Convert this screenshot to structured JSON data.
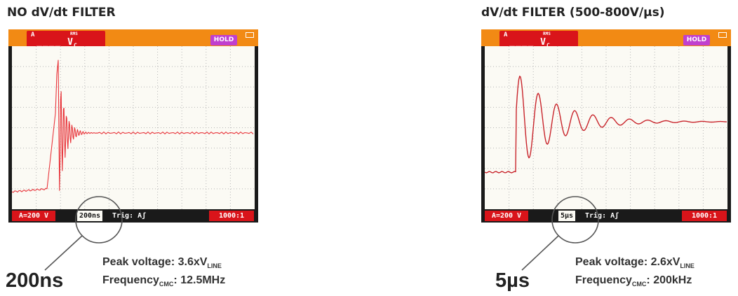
{
  "panels": [
    {
      "title": "NO dV/dt FILTER",
      "readout": {
        "channel": "A",
        "rms_label": "RMS",
        "value": "____ V",
        "value_sub": "C"
      },
      "hold_label": "HOLD",
      "scale_label": "A=200 V",
      "timebase_label": "200ns",
      "trigger_label": "Trig: Aʃ",
      "probe_label": "1000:1",
      "callout_value": "200ns",
      "peak_prefix": "Peak voltage: 3.6xV",
      "peak_sub": "LINE",
      "freq_prefix": "Frequency",
      "freq_sub": "CMC",
      "freq_value": ": 12.5MHz"
    },
    {
      "title": "dV/dt FILTER (500-800V/µs)",
      "readout": {
        "channel": "A",
        "rms_label": "RMS",
        "value": "____ V",
        "value_sub": "C"
      },
      "hold_label": "HOLD",
      "scale_label": "A=200 V",
      "timebase_label": "5µs",
      "trigger_label": "Trig: Aʃ",
      "probe_label": "1000:1",
      "callout_value": "5µs",
      "peak_prefix": "Peak voltage: 2.6xV",
      "peak_sub": "LINE",
      "freq_prefix": "Frequency",
      "freq_sub": "CMC",
      "freq_value": ": 200kHz"
    }
  ],
  "colors": {
    "bezel": "#1a1a1a",
    "topbar": "#f28a14",
    "chip": "#d9141a",
    "hold": "#c03fcf",
    "trace_raw": "#e8343a",
    "trace_filtered": "#c8242b",
    "screen": "#fbfaf4"
  }
}
